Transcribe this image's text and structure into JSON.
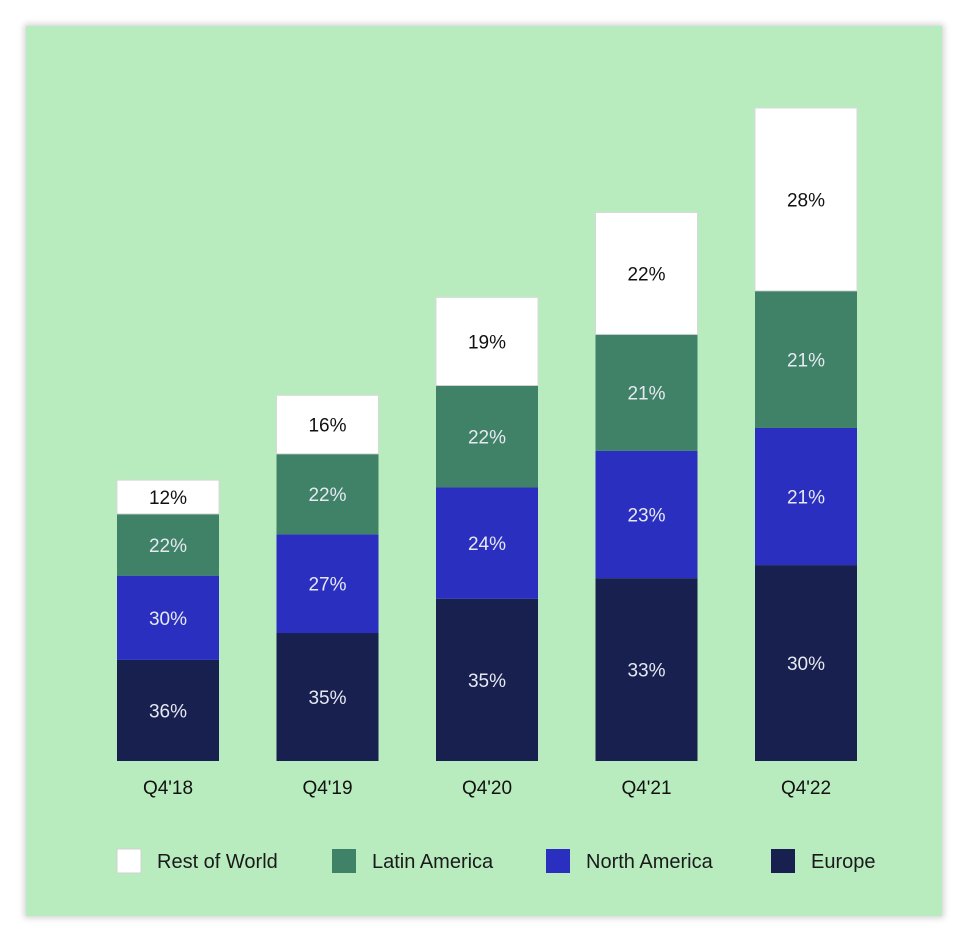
{
  "colors": {
    "background": "#b8ecbe",
    "Europe": "#17204f",
    "North America": "#2a2fc0",
    "Latin America": "#3f8267",
    "Rest of World": "#ffffff"
  },
  "chart_data": {
    "type": "bar",
    "stacked": true,
    "title": "",
    "xlabel": "",
    "ylabel": "",
    "categories": [
      "Q4'18",
      "Q4'19",
      "Q4'20",
      "Q4'21",
      "Q4'22"
    ],
    "relative_bar_height": [
      0.43,
      0.56,
      0.71,
      0.84,
      1.0
    ],
    "series": [
      {
        "name": "Europe",
        "values": [
          36,
          35,
          35,
          33,
          30
        ],
        "labels": [
          "36%",
          "35%",
          "35%",
          "33%",
          "30%"
        ]
      },
      {
        "name": "North America",
        "values": [
          30,
          27,
          24,
          23,
          21
        ],
        "labels": [
          "30%",
          "27%",
          "24%",
          "23%",
          "21%"
        ]
      },
      {
        "name": "Latin America",
        "values": [
          22,
          22,
          22,
          21,
          21
        ],
        "labels": [
          "22%",
          "22%",
          "22%",
          "21%",
          "21%"
        ]
      },
      {
        "name": "Rest of World",
        "values": [
          12,
          16,
          19,
          22,
          28
        ],
        "labels": [
          "12%",
          "16%",
          "19%",
          "22%",
          "28%"
        ]
      }
    ],
    "legend": {
      "position": "bottom",
      "items": [
        "Rest of World",
        "Latin America",
        "North America",
        "Europe"
      ]
    },
    "grid": false
  }
}
